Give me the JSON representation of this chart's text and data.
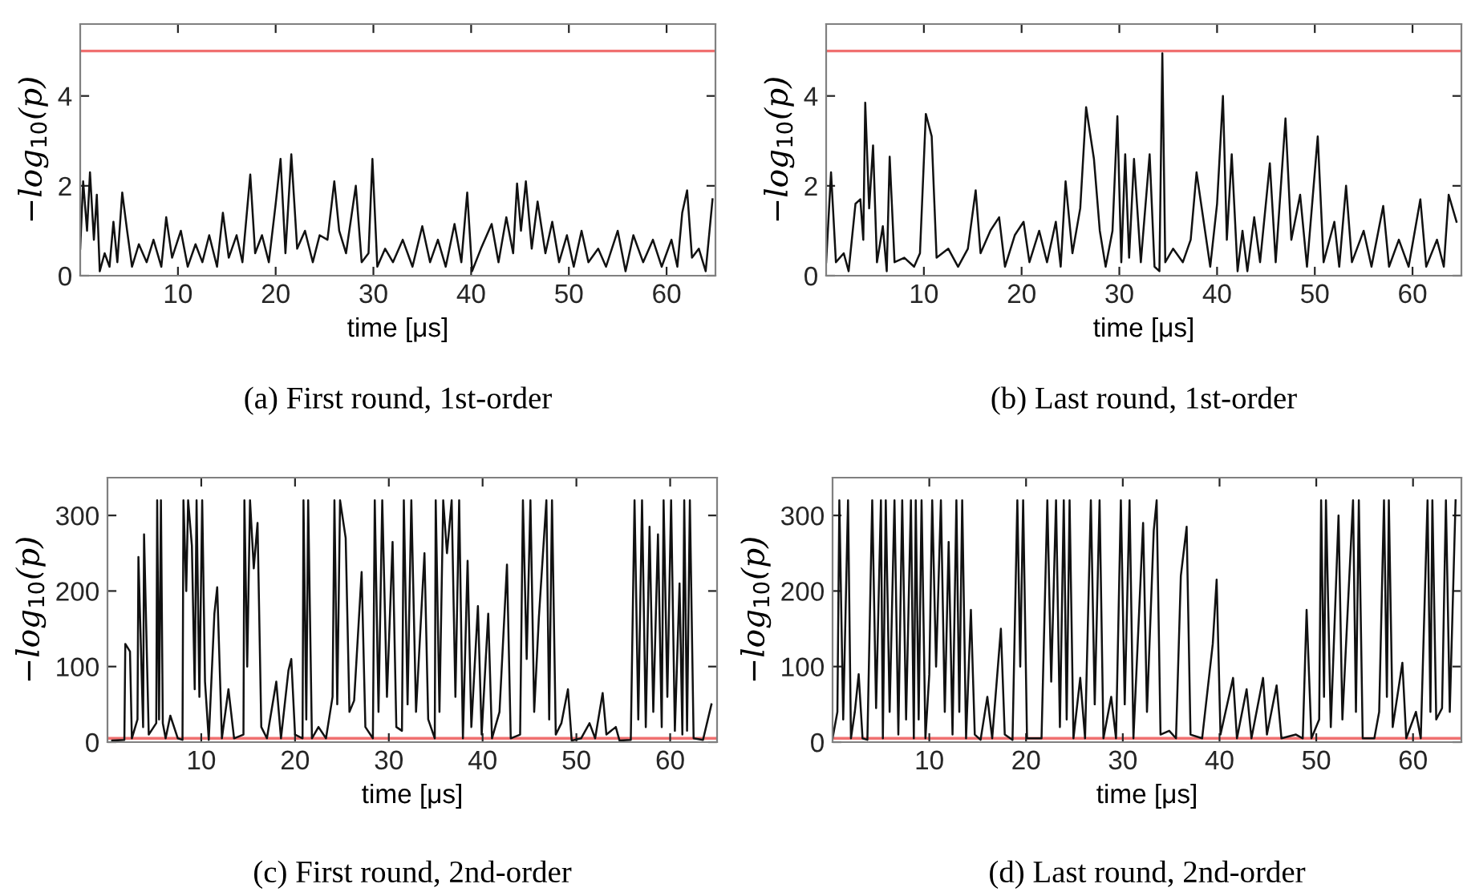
{
  "chart_data": [
    {
      "type": "line",
      "title": "(a) First round, 1st-order",
      "xlabel": "time [μs]",
      "ylabel": "−log$_{10}$(p)",
      "xlim": [
        0,
        65
      ],
      "xticks": [
        10,
        20,
        30,
        40,
        50,
        60
      ],
      "ylim": [
        0,
        5.6
      ],
      "yticks": [
        0,
        2,
        4
      ],
      "grid": false,
      "ref_lines": [
        {
          "axis": "y",
          "value": 5,
          "color": "#f07070"
        }
      ],
      "series": [
        {
          "color": "#111111",
          "x": [
            0,
            0.3,
            0.7,
            1.0,
            1.4,
            1.7,
            2.0,
            2.5,
            3.0,
            3.4,
            3.8,
            4.3,
            4.8,
            5.3,
            6.0,
            6.8,
            7.5,
            8.3,
            8.8,
            9.4,
            10.3,
            11.0,
            11.8,
            12.5,
            13.2,
            14.0,
            14.6,
            15.2,
            16.0,
            16.6,
            17.4,
            17.9,
            18.6,
            19.3,
            20.0,
            20.5,
            21.0,
            21.6,
            22.2,
            23.0,
            23.8,
            24.5,
            25.3,
            26.0,
            26.5,
            27.2,
            28.2,
            28.8,
            29.5,
            29.9,
            30.4,
            31.2,
            32.0,
            33.0,
            34.0,
            35.0,
            35.8,
            36.6,
            37.4,
            38.3,
            39.0,
            39.6,
            40.1,
            41.0,
            42.1,
            42.8,
            43.6,
            44.3,
            44.7,
            45.1,
            45.6,
            46.2,
            46.8,
            47.6,
            48.3,
            49.0,
            49.8,
            50.5,
            51.3,
            52.0,
            53.0,
            53.8,
            55.0,
            55.8,
            56.6,
            57.6,
            58.6,
            59.5,
            60.5,
            61.1,
            61.6,
            62.1,
            62.6,
            63.3,
            64.0,
            64.7
          ],
          "values": [
            0.6,
            2.1,
            1.0,
            2.3,
            0.8,
            1.8,
            0.1,
            0.5,
            0.2,
            1.2,
            0.3,
            1.85,
            1.0,
            0.2,
            0.7,
            0.3,
            0.8,
            0.2,
            1.3,
            0.4,
            1.0,
            0.2,
            0.7,
            0.3,
            0.9,
            0.2,
            1.4,
            0.4,
            0.9,
            0.3,
            2.25,
            0.5,
            0.9,
            0.3,
            1.6,
            2.6,
            0.5,
            2.7,
            0.6,
            1.0,
            0.3,
            0.9,
            0.8,
            2.1,
            1.0,
            0.5,
            2.0,
            0.3,
            0.5,
            2.6,
            0.2,
            0.6,
            0.3,
            0.8,
            0.2,
            1.1,
            0.3,
            0.8,
            0.2,
            1.15,
            0.3,
            1.85,
            0.1,
            0.6,
            1.15,
            0.3,
            1.3,
            0.5,
            2.05,
            1.0,
            2.1,
            0.6,
            1.65,
            0.5,
            1.2,
            0.3,
            0.9,
            0.2,
            1.0,
            0.3,
            0.6,
            0.2,
            1.0,
            0.1,
            0.9,
            0.3,
            0.8,
            0.2,
            0.8,
            0.2,
            1.4,
            1.9,
            0.4,
            0.6,
            0.1,
            1.7
          ]
        }
      ]
    },
    {
      "type": "line",
      "title": "(b) Last round, 1st-order",
      "xlabel": "time [μs]",
      "ylabel": "−log$_{10}$(p)",
      "xlim": [
        0,
        65
      ],
      "xticks": [
        10,
        20,
        30,
        40,
        50,
        60
      ],
      "ylim": [
        0,
        5.6
      ],
      "yticks": [
        0,
        2,
        4
      ],
      "grid": false,
      "ref_lines": [
        {
          "axis": "y",
          "value": 5,
          "color": "#f07070"
        }
      ],
      "series": [
        {
          "color": "#111111",
          "x": [
            0,
            0.5,
            1.0,
            1.8,
            2.3,
            3.0,
            3.5,
            3.8,
            4.0,
            4.4,
            4.8,
            5.2,
            5.8,
            6.2,
            6.5,
            7.0,
            8.0,
            9.0,
            9.6,
            10.2,
            10.8,
            11.3,
            12.5,
            13.5,
            14.5,
            15.3,
            15.8,
            16.8,
            17.7,
            18.3,
            19.3,
            20.2,
            20.8,
            21.8,
            22.6,
            23.5,
            24.0,
            24.5,
            25.2,
            26.0,
            26.6,
            27.4,
            28.0,
            28.6,
            29.3,
            29.8,
            30.2,
            30.6,
            31.0,
            31.5,
            32.2,
            33.1,
            33.6,
            34.1,
            34.4,
            34.7,
            35.5,
            36.5,
            37.3,
            37.9,
            38.5,
            39.3,
            40.0,
            40.6,
            41.0,
            41.5,
            42.1,
            42.6,
            43.1,
            43.8,
            44.4,
            45.4,
            46.0,
            47.0,
            47.6,
            48.5,
            49.2,
            50.3,
            50.9,
            52.0,
            52.5,
            53.2,
            53.8,
            55.0,
            55.8,
            57.0,
            57.6,
            58.6,
            59.6,
            60.8,
            61.4,
            62.5,
            63.2,
            63.7,
            64.5
          ],
          "values": [
            0.3,
            2.3,
            0.3,
            0.5,
            0.1,
            1.6,
            1.7,
            0.8,
            3.85,
            1.5,
            2.9,
            0.3,
            1.1,
            0.1,
            2.65,
            0.3,
            0.4,
            0.2,
            0.5,
            3.6,
            3.1,
            0.4,
            0.6,
            0.2,
            0.6,
            1.9,
            0.5,
            1.0,
            1.3,
            0.2,
            0.9,
            1.2,
            0.3,
            1.0,
            0.3,
            1.2,
            0.2,
            2.1,
            0.5,
            1.5,
            3.75,
            2.6,
            1.0,
            0.2,
            1.0,
            3.55,
            0.3,
            2.7,
            0.4,
            2.6,
            0.3,
            2.7,
            0.2,
            0.1,
            4.95,
            0.3,
            0.6,
            0.3,
            0.8,
            2.3,
            1.4,
            0.2,
            1.6,
            4.0,
            0.8,
            2.7,
            0.1,
            1.0,
            0.1,
            1.3,
            0.3,
            2.5,
            0.3,
            3.5,
            0.8,
            1.8,
            0.2,
            3.1,
            0.3,
            1.2,
            0.2,
            2.0,
            0.3,
            1.0,
            0.2,
            1.55,
            0.2,
            0.8,
            0.2,
            1.7,
            0.2,
            0.8,
            0.2,
            1.8,
            1.2
          ]
        }
      ]
    },
    {
      "type": "line",
      "title": "(c) First round, 2nd-order",
      "xlabel": "time [μs]",
      "ylabel": "−log$_{10}$(p)",
      "xlim": [
        0,
        65
      ],
      "xticks": [
        10,
        20,
        30,
        40,
        50,
        60
      ],
      "ylim": [
        0,
        350
      ],
      "yticks": [
        0,
        100,
        200,
        300
      ],
      "grid": false,
      "ref_lines": [
        {
          "axis": "y",
          "value": 5,
          "color": "#f07070"
        }
      ],
      "series": [
        {
          "color": "#111111",
          "x": [
            0.5,
            1.8,
            1.9,
            2.4,
            2.6,
            3.2,
            3.3,
            3.8,
            3.9,
            4.4,
            5.2,
            5.3,
            5.5,
            5.7,
            5.9,
            6.2,
            6.7,
            7.5,
            8.0,
            8.1,
            8.4,
            8.6,
            9.0,
            9.3,
            9.5,
            9.8,
            10.1,
            10.4,
            10.8,
            11.4,
            11.7,
            12.2,
            12.9,
            13.5,
            14.5,
            14.6,
            14.9,
            15.2,
            15.6,
            16.0,
            16.4,
            17.0,
            18.0,
            18.5,
            19.3,
            19.6,
            20.0,
            20.8,
            20.9,
            21.2,
            21.4,
            21.8,
            22.5,
            23.3,
            24.0,
            24.2,
            24.5,
            24.8,
            25.4,
            25.8,
            26.3,
            27.1,
            27.5,
            28.3,
            28.5,
            28.9,
            29.3,
            29.8,
            30.4,
            30.8,
            31.4,
            31.6,
            32.0,
            32.4,
            32.9,
            33.8,
            34.2,
            34.9,
            35.0,
            35.4,
            35.8,
            36.2,
            36.7,
            37.1,
            37.5,
            37.9,
            38.4,
            38.8,
            39.5,
            39.9,
            40.6,
            41.0,
            41.8,
            42.6,
            43.0,
            44.0,
            44.3,
            44.7,
            45.1,
            45.5,
            46.0,
            46.8,
            47.1,
            47.4,
            47.8,
            48.4,
            49.1,
            49.5,
            50.5,
            51.4,
            52.0,
            52.8,
            53.2,
            54.2,
            54.6,
            55.8,
            56.2,
            56.6,
            57.0,
            57.4,
            57.8,
            58.2,
            58.7,
            59.1,
            59.3,
            59.7,
            60.1,
            60.5,
            61.0,
            61.3,
            61.5,
            61.8,
            62.1,
            62.5,
            63.5,
            64.4
          ],
          "values": [
            2,
            3,
            130,
            120,
            5,
            30,
            245,
            20,
            275,
            10,
            25,
            320,
            30,
            320,
            25,
            5,
            35,
            5,
            3,
            320,
            200,
            320,
            260,
            70,
            320,
            60,
            320,
            80,
            3,
            170,
            205,
            5,
            70,
            5,
            10,
            320,
            100,
            320,
            230,
            290,
            20,
            5,
            80,
            5,
            95,
            110,
            10,
            5,
            320,
            30,
            320,
            5,
            20,
            5,
            60,
            320,
            50,
            320,
            270,
            40,
            55,
            225,
            20,
            5,
            320,
            40,
            320,
            60,
            265,
            20,
            15,
            320,
            50,
            320,
            40,
            250,
            30,
            5,
            320,
            40,
            320,
            250,
            320,
            60,
            320,
            5,
            240,
            20,
            180,
            10,
            170,
            5,
            40,
            235,
            5,
            10,
            320,
            110,
            320,
            40,
            165,
            320,
            30,
            320,
            10,
            25,
            70,
            2,
            5,
            25,
            5,
            65,
            10,
            20,
            2,
            3,
            320,
            30,
            320,
            20,
            285,
            40,
            275,
            20,
            320,
            60,
            320,
            15,
            210,
            10,
            320,
            15,
            320,
            5,
            3,
            50
          ]
        }
      ]
    },
    {
      "type": "line",
      "title": "(d) Last round, 2nd-order",
      "xlabel": "time [μs]",
      "ylabel": "−log$_{10}$(p)",
      "xlim": [
        0,
        65
      ],
      "xticks": [
        10,
        20,
        30,
        40,
        50,
        60
      ],
      "ylim": [
        0,
        350
      ],
      "yticks": [
        0,
        100,
        200,
        300
      ],
      "grid": false,
      "ref_lines": [
        {
          "axis": "y",
          "value": 5,
          "color": "#f07070"
        }
      ],
      "series": [
        {
          "color": "#111111",
          "x": [
            0,
            0.5,
            0.7,
            1.1,
            1.6,
            1.9,
            2.3,
            2.7,
            3.1,
            3.6,
            4.1,
            4.5,
            5.0,
            5.2,
            5.5,
            5.9,
            6.4,
            6.8,
            7.2,
            7.6,
            8.1,
            8.4,
            8.6,
            8.9,
            9.2,
            9.6,
            10.0,
            10.3,
            10.7,
            11.2,
            11.6,
            12.0,
            12.4,
            12.8,
            13.1,
            13.4,
            13.8,
            14.3,
            14.7,
            15.3,
            16.0,
            16.5,
            17.4,
            17.8,
            18.6,
            19.1,
            19.4,
            19.7,
            20.1,
            21.6,
            22.2,
            22.6,
            23.1,
            23.5,
            23.9,
            24.2,
            24.5,
            24.9,
            25.6,
            26.1,
            26.7,
            27.1,
            27.6,
            28.0,
            28.8,
            29.3,
            29.8,
            30.2,
            30.7,
            31.1,
            32.1,
            32.5,
            33.2,
            33.5,
            33.9,
            34.8,
            35.5,
            36.0,
            36.6,
            37.0,
            38.2,
            39.3,
            39.7,
            40.1,
            41.4,
            41.8,
            42.8,
            43.3,
            44.5,
            44.9,
            45.9,
            46.4,
            47.9,
            48.6,
            49.0,
            49.5,
            50.3,
            50.5,
            50.8,
            51.0,
            51.5,
            52.3,
            52.7,
            53.8,
            54.1,
            54.4,
            54.8,
            56.0,
            56.5,
            57.0,
            57.3,
            57.5,
            57.9,
            58.9,
            59.3,
            60.3,
            60.8,
            61.5,
            61.8,
            62.0,
            62.4,
            63.0,
            63.4,
            63.8,
            64.4
          ],
          "values": [
            5,
            40,
            320,
            30,
            320,
            5,
            40,
            90,
            5,
            3,
            320,
            45,
            320,
            5,
            320,
            40,
            320,
            10,
            320,
            30,
            320,
            5,
            320,
            30,
            320,
            5,
            90,
            320,
            100,
            320,
            40,
            265,
            10,
            320,
            40,
            320,
            5,
            175,
            10,
            3,
            60,
            5,
            150,
            10,
            3,
            320,
            100,
            320,
            5,
            5,
            320,
            80,
            320,
            20,
            320,
            30,
            320,
            5,
            85,
            5,
            320,
            50,
            320,
            5,
            60,
            5,
            320,
            50,
            320,
            5,
            290,
            40,
            280,
            320,
            10,
            15,
            5,
            220,
            285,
            10,
            5,
            130,
            215,
            10,
            85,
            5,
            70,
            5,
            85,
            10,
            75,
            5,
            10,
            5,
            175,
            5,
            30,
            320,
            60,
            320,
            20,
            300,
            30,
            320,
            40,
            320,
            5,
            5,
            40,
            320,
            60,
            320,
            20,
            105,
            5,
            40,
            5,
            320,
            40,
            320,
            30,
            45,
            320,
            40,
            320
          ]
        }
      ]
    }
  ]
}
